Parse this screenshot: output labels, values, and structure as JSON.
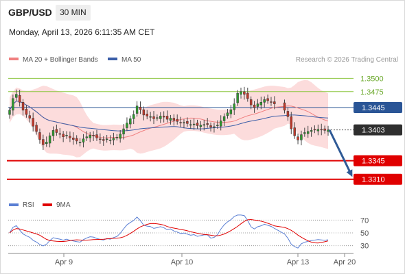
{
  "header": {
    "symbol": "GBP/USD",
    "timeframe": "30 MIN",
    "datetime": "Monday, April 13, 2026 6:11:35 AM CET"
  },
  "colors": {
    "bollinger": "#f08080",
    "bollinger_fill": "#fcdcdc",
    "ma50": "#3b5ea8",
    "green_line": "#8cc63f",
    "blue_line": "#2a5596",
    "red_line": "#e00000",
    "up_candle": "#2e9a2e",
    "down_candle": "#c0392b",
    "arrow": "#2f5a96",
    "rsi": "#5a7fd4",
    "rsi_ma": "#e00000"
  },
  "chart_data": [
    {
      "type": "candlestick",
      "legend": [
        {
          "label": "MA 20 + Bollinger Bands",
          "color": "#f08080"
        },
        {
          "label": "MA 50",
          "color": "#3b5ea8"
        }
      ],
      "watermark": "Research © 2026 Trading Central",
      "x_ticks": [
        "Apr 9",
        "Apr 10",
        "Apr 13",
        "Apr 20"
      ],
      "ylim": [
        1.328,
        1.3525
      ],
      "levels": [
        {
          "label": "1.3500",
          "value": 1.35,
          "kind": "green"
        },
        {
          "label": "1.3475",
          "value": 1.3475,
          "kind": "green"
        },
        {
          "label": "1.3445",
          "value": 1.3445,
          "kind": "pivot"
        },
        {
          "label": "1.3403",
          "value": 1.3403,
          "kind": "last"
        },
        {
          "label": "1.3345",
          "value": 1.3345,
          "kind": "support"
        },
        {
          "label": "1.3310",
          "value": 1.331,
          "kind": "support"
        }
      ],
      "price_close": [
        1.344,
        1.3462,
        1.347,
        1.3455,
        1.344,
        1.3432,
        1.3425,
        1.341,
        1.34,
        1.3385,
        1.3375,
        1.338,
        1.3392,
        1.3402,
        1.3398,
        1.3395,
        1.339,
        1.3393,
        1.3388,
        1.3385,
        1.3382,
        1.338,
        1.3386,
        1.339,
        1.3393,
        1.3392,
        1.3388,
        1.3385,
        1.3383,
        1.3386,
        1.3384,
        1.3387,
        1.3389,
        1.3395,
        1.3405,
        1.3416,
        1.3424,
        1.3432,
        1.3448,
        1.3441,
        1.3431,
        1.3429,
        1.3428,
        1.3424,
        1.3426,
        1.3429,
        1.3427,
        1.3423,
        1.3425,
        1.3421,
        1.3419,
        1.3416,
        1.3417,
        1.3415,
        1.3413,
        1.3414,
        1.3411,
        1.3412,
        1.3413,
        1.3413,
        1.3408,
        1.3409,
        1.3412,
        1.342,
        1.3428,
        1.3435,
        1.3441,
        1.3452,
        1.3472,
        1.3475,
        1.347,
        1.3462,
        1.345,
        1.3445,
        1.3452,
        1.3455,
        1.346,
        1.3458,
        1.3456,
        1.3452,
        1.344,
        1.3428,
        1.3405,
        1.3392,
        1.3384,
        1.3394,
        1.3398,
        1.34,
        1.3402,
        1.3403,
        1.3404,
        1.3403,
        1.3402,
        1.3403
      ],
      "gap_after_index": 79,
      "rsi_panel": {
        "legend": [
          {
            "label": "RSI",
            "color": "#5a7fd4"
          },
          {
            "label": "9MA",
            "color": "#e00000"
          }
        ],
        "ticks": [
          "70",
          "50",
          "30"
        ],
        "ylim": [
          20,
          80
        ],
        "levels": [
          70,
          50,
          30
        ]
      }
    }
  ]
}
